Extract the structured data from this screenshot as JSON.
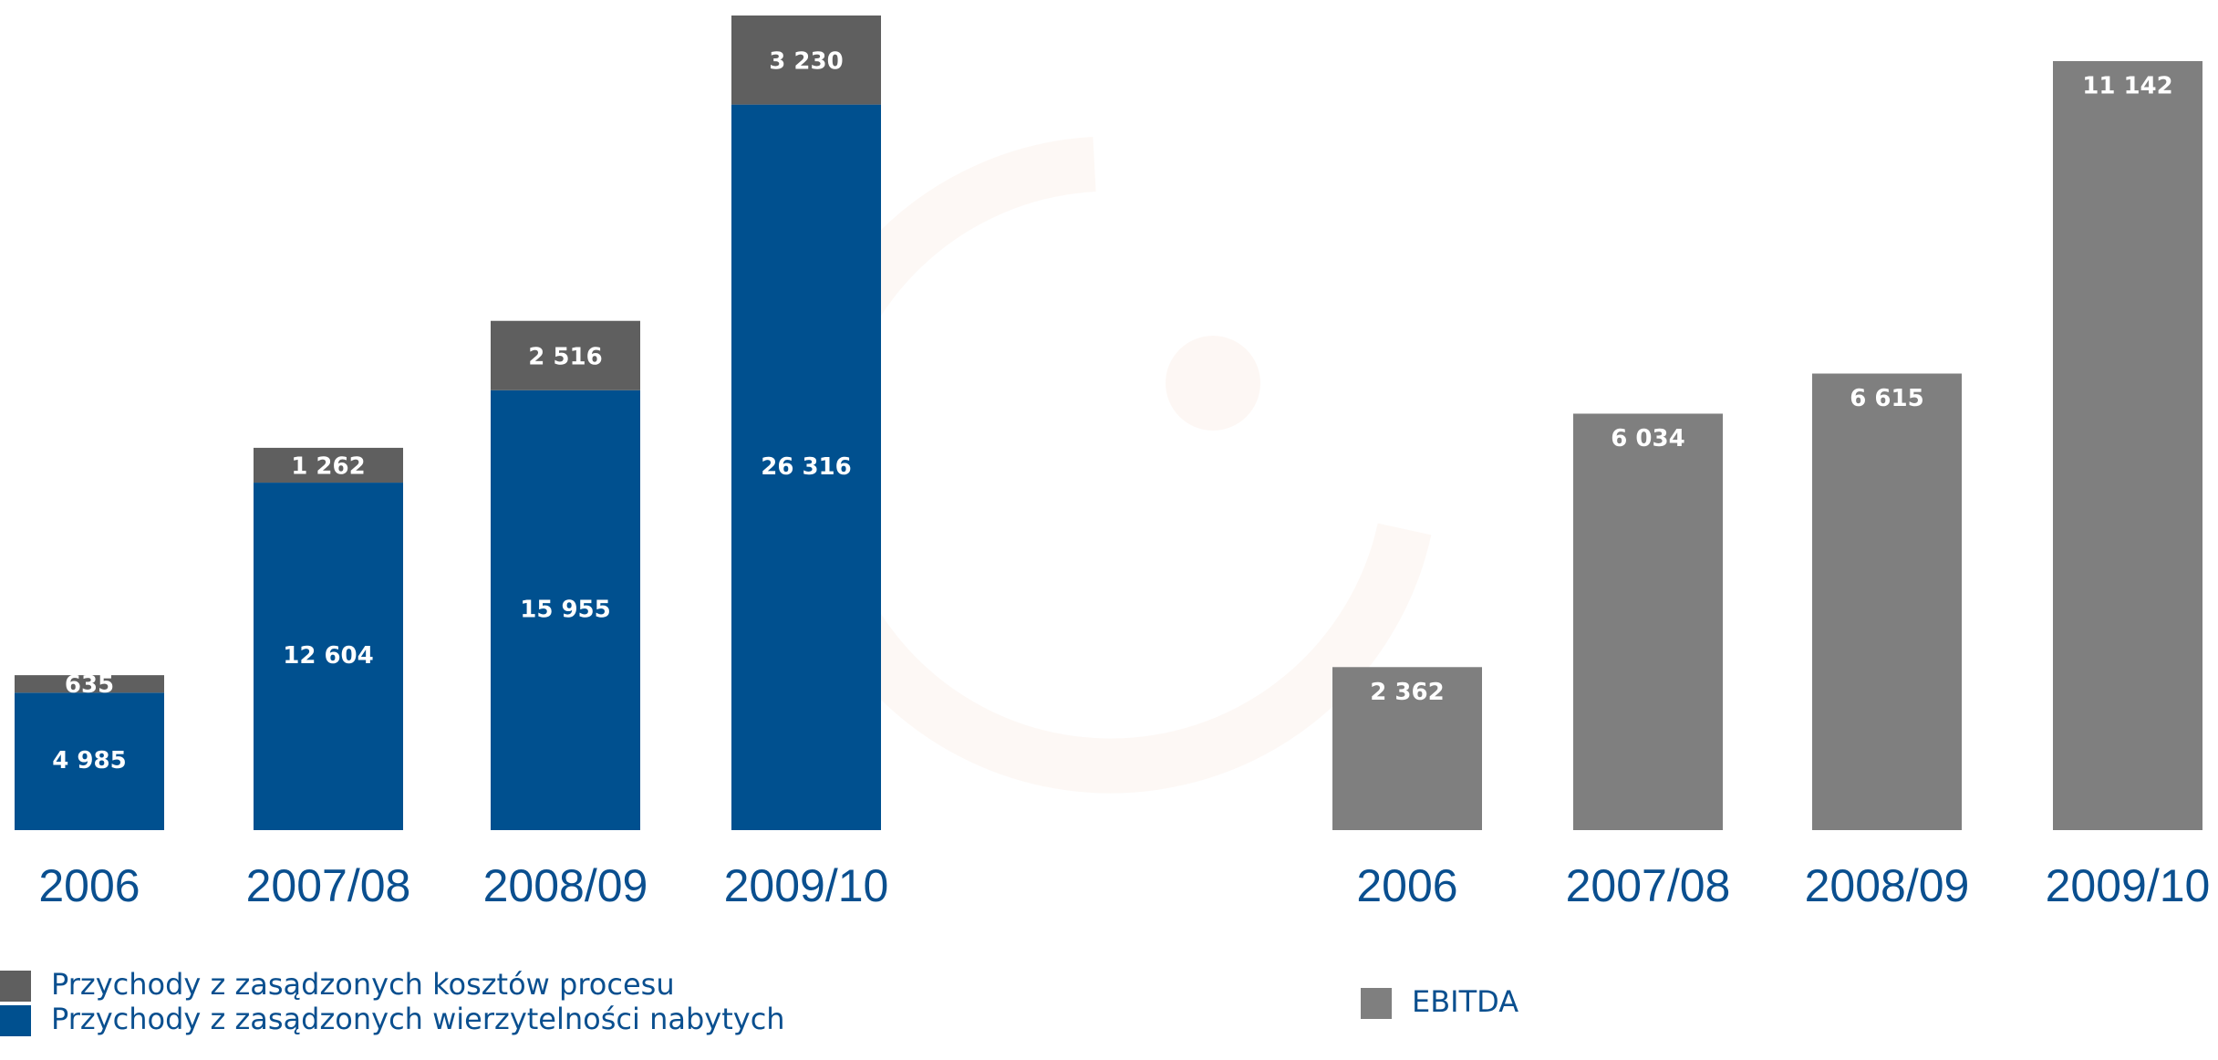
{
  "chart_data": [
    {
      "type": "stacked_bar",
      "categories": [
        "2006",
        "2007/08",
        "2008/09",
        "2009/10"
      ],
      "series": [
        {
          "name": "Przychody z zasądzonych wierzytelności nabytych",
          "color": "#00508f",
          "values": [
            4985,
            12604,
            15955,
            26316
          ],
          "value_labels": [
            "4 985",
            "12 604",
            "15 955",
            "26 316"
          ]
        },
        {
          "name": "Przychody z zasądzonych kosztów procesu",
          "color": "#5f5f5f",
          "values": [
            635,
            1262,
            2516,
            3230
          ],
          "value_labels": [
            "635",
            "1 262",
            "2 516",
            "3 230"
          ]
        }
      ]
    },
    {
      "type": "bar",
      "categories": [
        "2006",
        "2007/08",
        "2008/09",
        "2009/10"
      ],
      "series": [
        {
          "name": "EBITDA",
          "color": "#7f7f7f",
          "values": [
            2362,
            6034,
            6615,
            11142
          ],
          "value_labels": [
            "2 362",
            "6 034",
            "6 615",
            "11 142"
          ]
        }
      ]
    }
  ]
}
